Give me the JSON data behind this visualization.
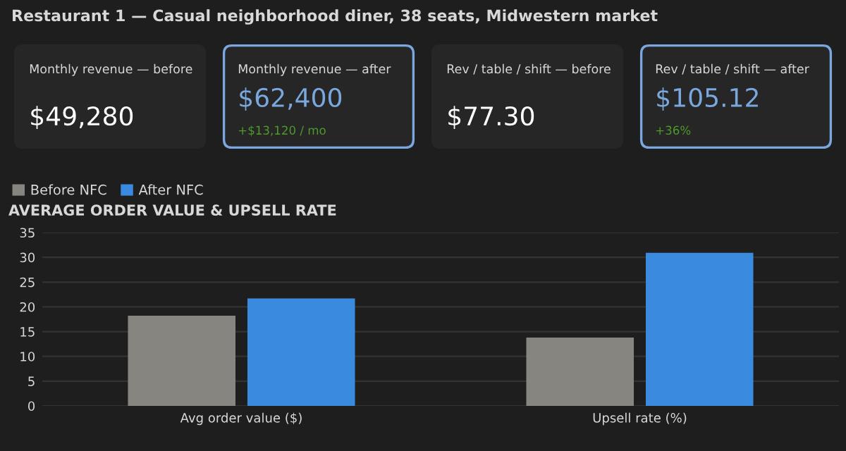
{
  "chart_data": [
    {
      "type": "other",
      "title": "Restaurant 1 — Casual neighborhood diner, 38 seats, Midwestern market"
    },
    {
      "type": "other",
      "title": "Monthly revenue — before",
      "annotations": [
        "$49,280"
      ],
      "color": "#ffffff"
    },
    {
      "type": "other",
      "title": "Monthly revenue — after",
      "annotations": [
        "$62,400",
        "+$13,120 / mo"
      ],
      "color": "#7aa7dd"
    },
    {
      "type": "other",
      "title": "Rev / table / shift — before",
      "annotations": [
        "$77.30"
      ],
      "color": "#ffffff"
    },
    {
      "type": "other",
      "title": "Rev / table / shift — after",
      "annotations": [
        "$105.12",
        "+36%"
      ],
      "color": "#7aa7dd"
    },
    {
      "type": "bar",
      "title": "AVERAGE ORDER VALUE & UPSELL RATE",
      "categories": [
        "Avg order value ($)",
        "Upsell rate (%)"
      ],
      "series": [
        {
          "name": "Before NFC",
          "color": "#86857f",
          "values": [
            18.2,
            13.8
          ]
        },
        {
          "name": "After NFC",
          "color": "#3a8bdf",
          "values": [
            21.7,
            30.9
          ]
        }
      ],
      "ylim": [
        0,
        35
      ],
      "yticks": [
        0,
        5,
        10,
        15,
        20,
        25,
        30,
        35
      ],
      "grid": "y",
      "legend": "top left"
    }
  ]
}
